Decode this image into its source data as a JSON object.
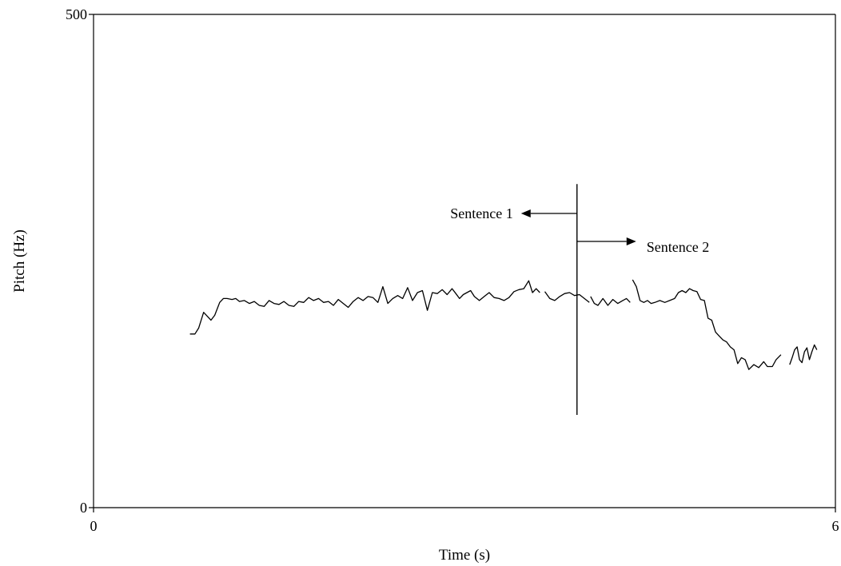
{
  "chart_data": {
    "type": "line",
    "title": "",
    "xlabel": "Time (s)",
    "ylabel": "Pitch (Hz)",
    "xlim": [
      0,
      6
    ],
    "ylim": [
      0,
      500
    ],
    "x_ticks": [
      "0",
      "6"
    ],
    "y_ticks": [
      "0",
      "500"
    ],
    "grid": false,
    "series_color": "#000000",
    "segments": [
      {
        "x": [
          0.78,
          0.82,
          0.85,
          0.89,
          0.92,
          0.95,
          0.98,
          1.02,
          1.05,
          1.08,
          1.12,
          1.15,
          1.18,
          1.22,
          1.26,
          1.3,
          1.34,
          1.38,
          1.42,
          1.46,
          1.5,
          1.54,
          1.58,
          1.62,
          1.66,
          1.7,
          1.74,
          1.78,
          1.82,
          1.86,
          1.9,
          1.94,
          1.98,
          2.02,
          2.06,
          2.1,
          2.14,
          2.18,
          2.22,
          2.26,
          2.3,
          2.34,
          2.38,
          2.42,
          2.46,
          2.5,
          2.54,
          2.58,
          2.62,
          2.66,
          2.7,
          2.74,
          2.78,
          2.82,
          2.86,
          2.9,
          2.93,
          2.96,
          2.99,
          3.02,
          3.05,
          3.08,
          3.12,
          3.16,
          3.2,
          3.24,
          3.28,
          3.32,
          3.36,
          3.4,
          3.44,
          3.48,
          3.52,
          3.55,
          3.58,
          3.61
        ],
        "y": [
          176,
          176,
          182,
          198,
          194,
          190,
          195,
          208,
          212,
          212,
          211,
          212,
          209,
          210,
          207,
          209,
          205,
          204,
          210,
          207,
          206,
          209,
          205,
          204,
          209,
          208,
          213,
          210,
          212,
          208,
          209,
          205,
          211,
          207,
          203,
          209,
          213,
          210,
          214,
          213,
          208,
          224,
          207,
          212,
          215,
          212,
          223,
          210,
          218,
          220,
          200,
          218,
          217,
          221,
          216,
          222,
          217,
          212,
          216,
          218,
          220,
          214,
          210,
          214,
          218,
          213,
          212,
          210,
          213,
          219,
          221,
          222,
          230,
          218,
          222,
          218
        ]
      },
      {
        "x": [
          3.65,
          3.69,
          3.73,
          3.77,
          3.81,
          3.85,
          3.89,
          3.93,
          3.97,
          4.01
        ],
        "y": [
          219,
          212,
          210,
          214,
          217,
          218,
          215,
          216,
          212,
          208
        ]
      },
      {
        "x": [
          4.02,
          4.05,
          4.08,
          4.12,
          4.16,
          4.2,
          4.24,
          4.28,
          4.31,
          4.34
        ],
        "y": [
          214,
          207,
          205,
          212,
          205,
          211,
          207,
          210,
          212,
          208
        ]
      },
      {
        "x": [
          4.36,
          4.39,
          4.42,
          4.45,
          4.48,
          4.51,
          4.54,
          4.58,
          4.62,
          4.66,
          4.7,
          4.73,
          4.76,
          4.79,
          4.82,
          4.85,
          4.88,
          4.91,
          4.94,
          4.97,
          5.0,
          5.03,
          5.06,
          5.09,
          5.12,
          5.15,
          5.18,
          5.21,
          5.24,
          5.27,
          5.3,
          5.34,
          5.38,
          5.42,
          5.45,
          5.49,
          5.52,
          5.56
        ],
        "y": [
          231,
          224,
          210,
          208,
          210,
          207,
          208,
          210,
          208,
          210,
          212,
          218,
          220,
          218,
          222,
          220,
          219,
          211,
          210,
          192,
          190,
          178,
          174,
          170,
          168,
          163,
          160,
          146,
          152,
          150,
          140,
          145,
          142,
          148,
          143,
          143,
          150,
          155
        ]
      },
      {
        "x": [
          5.63,
          5.65,
          5.67,
          5.69,
          5.71,
          5.73,
          5.75,
          5.77,
          5.79,
          5.81,
          5.83,
          5.85
        ],
        "y": [
          145,
          152,
          160,
          163,
          150,
          147,
          158,
          162,
          150,
          158,
          165,
          160
        ]
      }
    ],
    "annotations": [
      {
        "text": "Sentence 1",
        "arrow": "left"
      },
      {
        "text": "Sentence 2",
        "arrow": "right"
      }
    ],
    "divider": {
      "x": 3.91,
      "y_from": 94,
      "y_to": 328
    }
  }
}
